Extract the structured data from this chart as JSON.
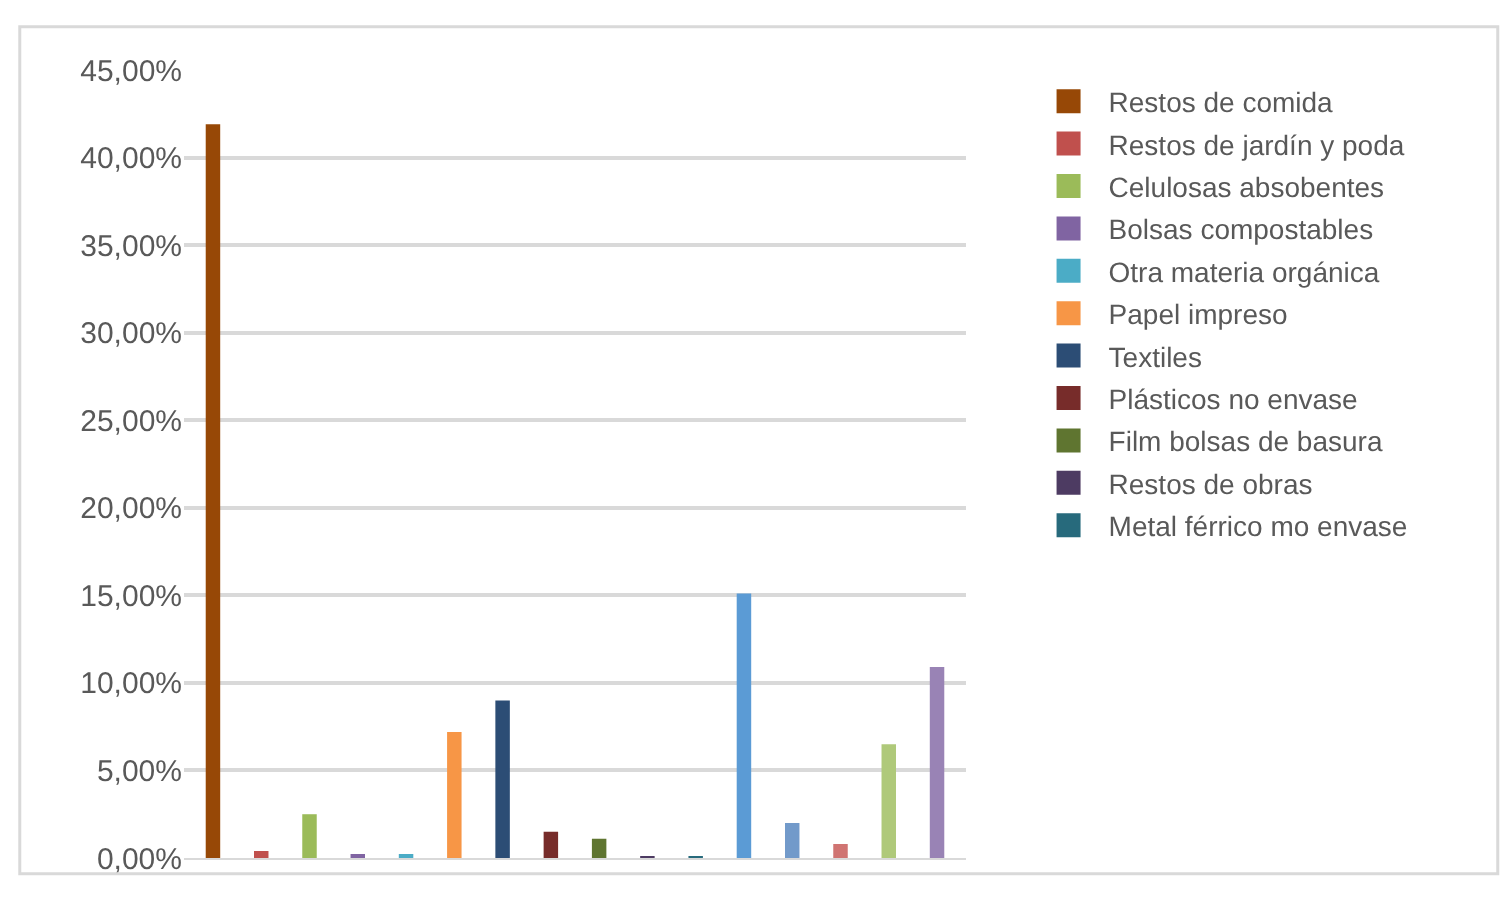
{
  "chart_data": {
    "type": "bar",
    "categories": [
      null,
      null,
      null,
      null,
      null,
      null,
      null,
      null,
      null,
      null,
      null,
      null,
      null,
      null,
      null,
      null
    ],
    "series": [
      {
        "name": "Restos de comida",
        "color": "#974806",
        "values": [
          41.9,
          null,
          null,
          null,
          null,
          null,
          null,
          null,
          null,
          null,
          null,
          null,
          null,
          null,
          null,
          null
        ]
      },
      {
        "name": "Restos de jardín y poda",
        "color": "#c0504d",
        "values": [
          null,
          0.4,
          null,
          null,
          null,
          null,
          null,
          null,
          null,
          null,
          null,
          null,
          null,
          null,
          null,
          null
        ]
      },
      {
        "name": "Celulosas absobentes",
        "color": "#9bbb59",
        "values": [
          null,
          null,
          2.5,
          null,
          null,
          null,
          null,
          null,
          null,
          null,
          null,
          null,
          null,
          null,
          null,
          null
        ]
      },
      {
        "name": "Bolsas compostables",
        "color": "#8064a2",
        "values": [
          null,
          null,
          null,
          0.2,
          null,
          null,
          null,
          null,
          null,
          null,
          null,
          null,
          null,
          null,
          null,
          null
        ]
      },
      {
        "name": "Otra materia orgánica",
        "color": "#4bacc6",
        "values": [
          null,
          null,
          null,
          null,
          0.2,
          null,
          null,
          null,
          null,
          null,
          null,
          null,
          null,
          null,
          null,
          null
        ]
      },
      {
        "name": "Papel impreso",
        "color": "#f79646",
        "values": [
          null,
          null,
          null,
          null,
          null,
          7.2,
          null,
          null,
          null,
          null,
          null,
          null,
          null,
          null,
          null,
          null
        ]
      },
      {
        "name": "Textiles",
        "color": "#2c4d75",
        "values": [
          null,
          null,
          null,
          null,
          null,
          null,
          9.0,
          null,
          null,
          null,
          null,
          null,
          null,
          null,
          null,
          null
        ]
      },
      {
        "name": "Plásticos no envase",
        "color": "#772c2a",
        "values": [
          null,
          null,
          null,
          null,
          null,
          null,
          null,
          1.5,
          null,
          null,
          null,
          null,
          null,
          null,
          null,
          null
        ]
      },
      {
        "name": "Film bolsas de basura",
        "color": "#5f7530",
        "values": [
          null,
          null,
          null,
          null,
          null,
          null,
          null,
          null,
          1.1,
          null,
          null,
          null,
          null,
          null,
          null,
          null
        ]
      },
      {
        "name": "Restos de obras",
        "color": "#4d3b62",
        "values": [
          null,
          null,
          null,
          null,
          null,
          null,
          null,
          null,
          null,
          0.1,
          null,
          null,
          null,
          null,
          null,
          null
        ]
      },
      {
        "name": "Metal férrico mo envase",
        "color": "#276a7c",
        "values": [
          null,
          null,
          null,
          null,
          null,
          null,
          null,
          null,
          null,
          null,
          0.1,
          null,
          null,
          null,
          null,
          null
        ]
      },
      {
        "color": "#5b9bd5",
        "values": [
          null,
          null,
          null,
          null,
          null,
          null,
          null,
          null,
          null,
          null,
          null,
          15.1,
          null,
          null,
          null,
          null
        ]
      },
      {
        "color": "#729aca",
        "values": [
          null,
          null,
          null,
          null,
          null,
          null,
          null,
          null,
          null,
          null,
          null,
          null,
          2.0,
          null,
          null,
          null
        ]
      },
      {
        "color": "#d07472",
        "values": [
          null,
          null,
          null,
          null,
          null,
          null,
          null,
          null,
          null,
          null,
          null,
          null,
          null,
          0.8,
          null,
          null
        ]
      },
      {
        "color": "#afc97a",
        "values": [
          null,
          null,
          null,
          null,
          null,
          null,
          null,
          null,
          null,
          null,
          null,
          null,
          null,
          null,
          6.5,
          null
        ]
      },
      {
        "color": "#9983b5",
        "values": [
          null,
          null,
          null,
          null,
          null,
          null,
          null,
          null,
          null,
          null,
          null,
          null,
          null,
          null,
          null,
          10.9
        ]
      }
    ],
    "ylim": [
      0,
      45
    ],
    "yticks": [
      {
        "value": 0,
        "label": "0,00%"
      },
      {
        "value": 5,
        "label": "5,00%"
      },
      {
        "value": 10,
        "label": "10,00%"
      },
      {
        "value": 15,
        "label": "15,00%"
      },
      {
        "value": 20,
        "label": "20,00%"
      },
      {
        "value": 25,
        "label": "25,00%"
      },
      {
        "value": 30,
        "label": "30,00%"
      },
      {
        "value": 35,
        "label": "35,00%"
      },
      {
        "value": 40,
        "label": "40,00%"
      },
      {
        "value": 45,
        "label": "45,00%"
      }
    ],
    "grid": "y",
    "legend": "right"
  }
}
